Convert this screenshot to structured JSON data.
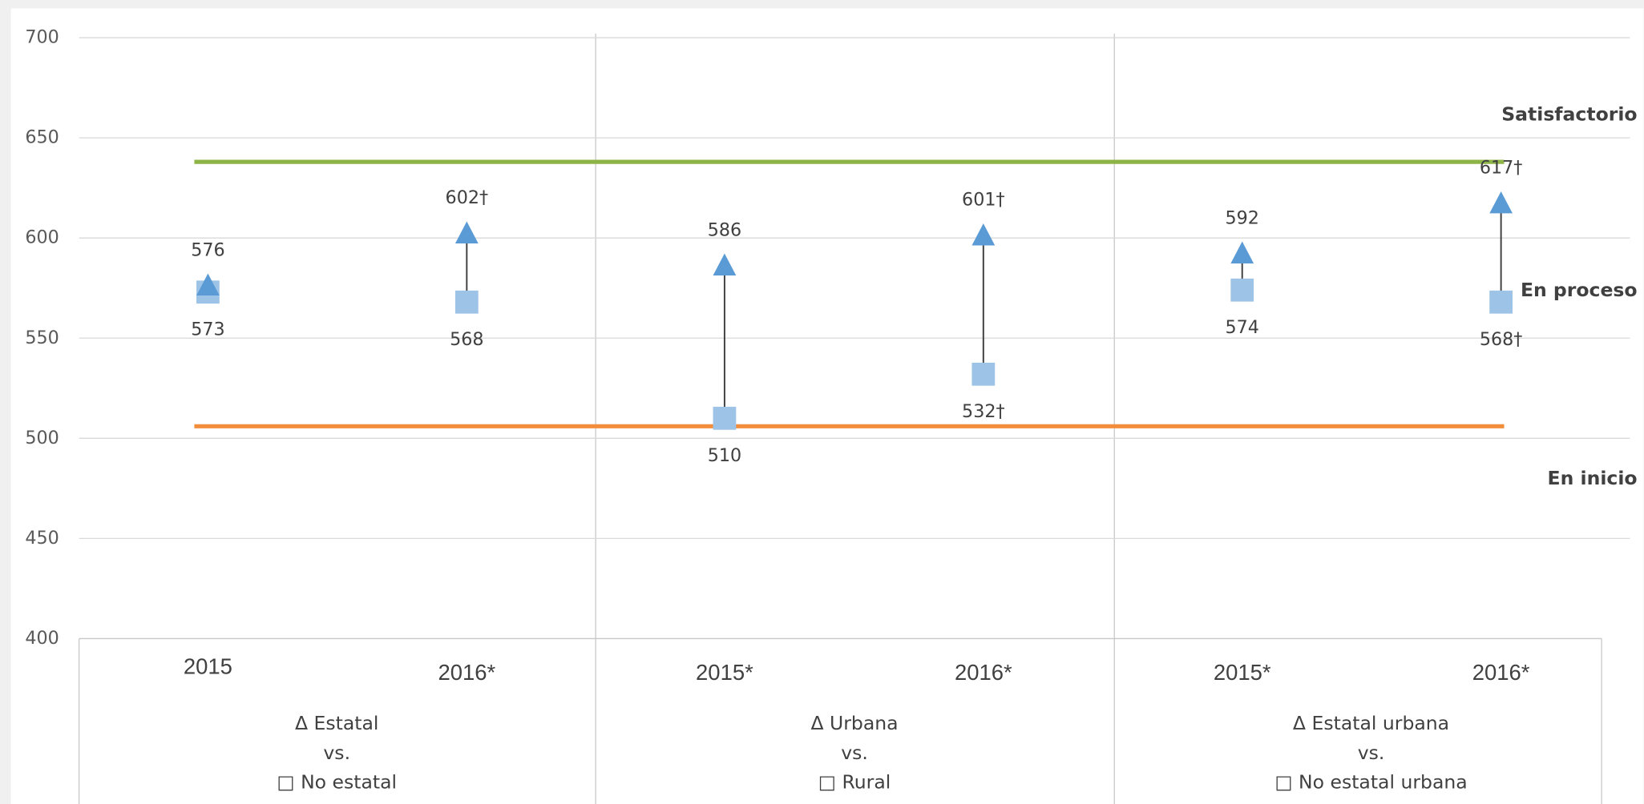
{
  "chart_data": {
    "type": "dot-range",
    "categories": [
      "2015",
      "2016*",
      "2015*",
      "2016*",
      "2015*",
      "2016*"
    ],
    "groups": [
      [
        "Δ Estatal",
        "vs.",
        "□ No estatal"
      ],
      [
        "Δ Urbana",
        "vs.",
        "□ Rural"
      ],
      [
        "Δ Estatal urbana",
        "vs.",
        "□ No estatal urbana"
      ]
    ],
    "series": [
      {
        "name": "Δ",
        "color": "#5b9bd5",
        "marker": "triangle",
        "values": [
          576,
          602,
          586,
          601,
          592,
          617
        ],
        "value_labels": [
          "576",
          "602†",
          "586",
          "601†",
          "592",
          "617†"
        ]
      },
      {
        "name": "□",
        "color": "#9dc3e6",
        "marker": "square",
        "values": [
          573,
          568,
          510,
          532,
          574,
          568
        ],
        "value_labels": [
          "573",
          "568",
          "510",
          "532†",
          "574",
          "568†"
        ]
      }
    ],
    "reference_lines": [
      {
        "value": 638,
        "color": "#8db446"
      },
      {
        "value": 506,
        "color": "#f28e3b"
      }
    ],
    "annotations": [
      {
        "text": "Satisfactorio",
        "color": "#8db446"
      },
      {
        "text": "En proceso",
        "color": "#f28e3b"
      },
      {
        "text": "En inicio",
        "color": "#c0392b"
      }
    ],
    "ylim": [
      400,
      700
    ],
    "yticks": [
      400,
      450,
      500,
      550,
      600,
      650,
      700
    ],
    "grid": true
  }
}
